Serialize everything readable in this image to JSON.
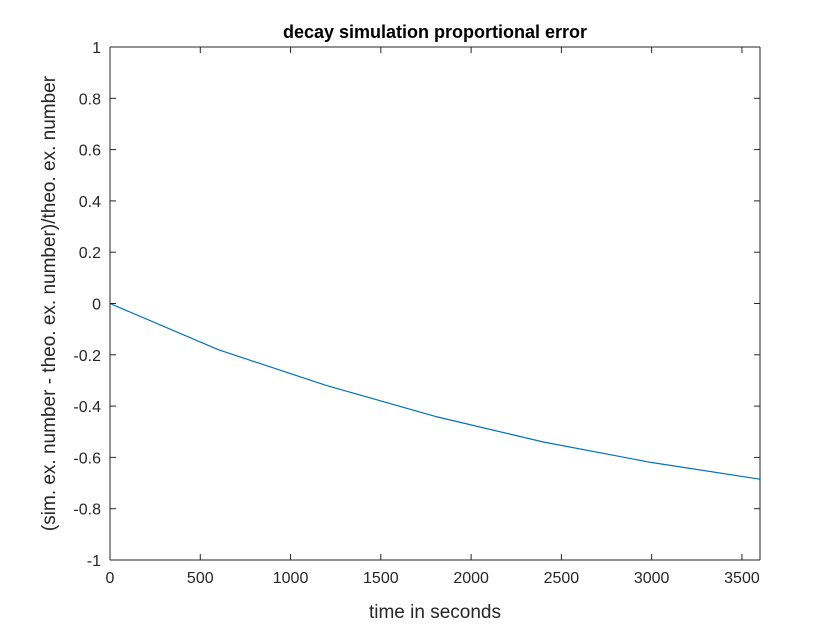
{
  "chart_data": {
    "type": "line",
    "title": "decay simulation proportional error",
    "xlabel": "time in seconds",
    "ylabel": "(sim. ex. number - theo. ex. number)/theo. ex. number",
    "xlim": [
      0,
      3600
    ],
    "ylim": [
      -1,
      1
    ],
    "xticks": [
      0,
      500,
      1000,
      1500,
      2000,
      2500,
      3000,
      3500
    ],
    "yticks": [
      1,
      0.8,
      0.6,
      0.4,
      0.2,
      0,
      -0.2,
      -0.4,
      -0.6,
      -0.8,
      -1
    ],
    "grid": false,
    "colors": {
      "line": "#0072bd",
      "axes": "#262626",
      "background": "#ffffff"
    },
    "series": [
      {
        "x": [
          0,
          600,
          1200,
          1800,
          2400,
          3000,
          3600
        ],
        "values": [
          0,
          -0.18,
          -0.32,
          -0.44,
          -0.54,
          -0.62,
          -0.685
        ]
      }
    ]
  }
}
